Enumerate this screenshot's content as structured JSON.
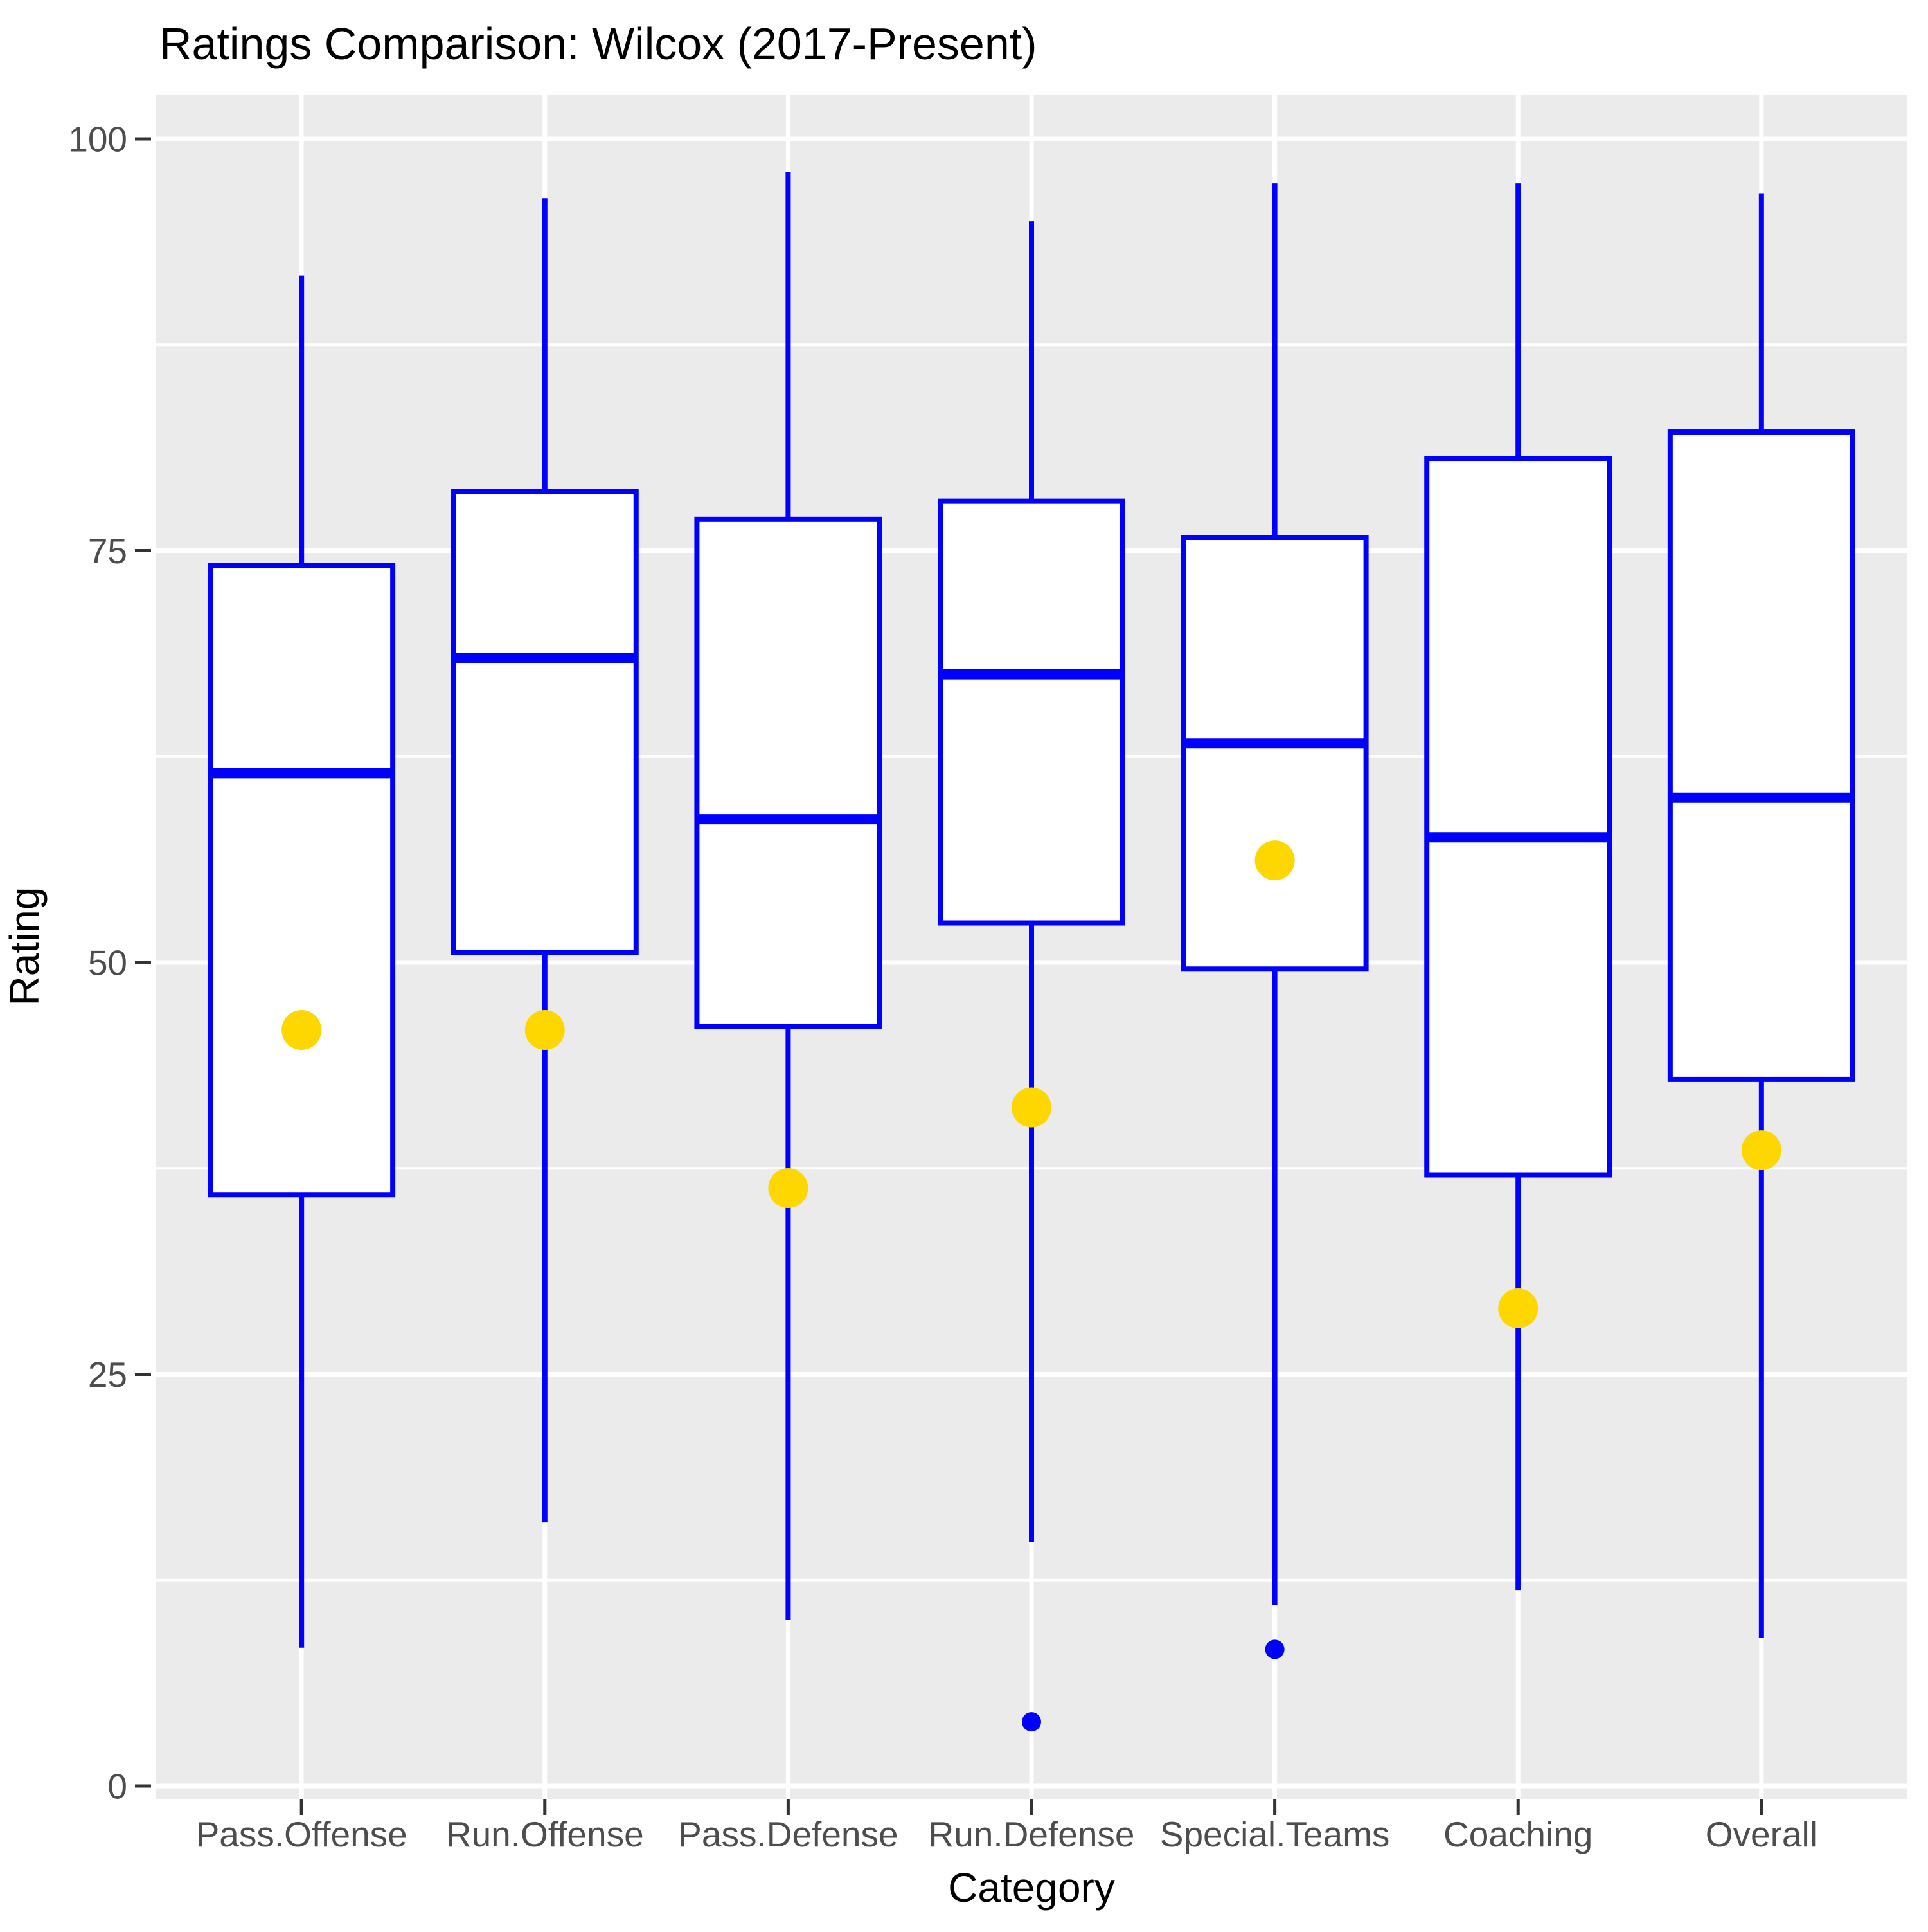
{
  "chart_data": {
    "type": "boxplot",
    "title": "Ratings Comparison: Wilcox (2017-Present)",
    "xlabel": "Category",
    "ylabel": "Rating",
    "ylim": [
      0,
      100
    ],
    "yticks": [
      0,
      25,
      50,
      75,
      100
    ],
    "y_minor_gridlines": [
      12.5,
      37.5,
      62.5,
      87.5
    ],
    "grid": "white major and minor horizontal gridlines plus vertical major gridlines at each category, on grey panel",
    "legend_position": "none",
    "categories": [
      "Pass.Offense",
      "Run.Offense",
      "Pass.Defense",
      "Run.Defense",
      "Special.Teams",
      "Coaching",
      "Overall"
    ],
    "series": [
      {
        "name": "Pass.Offense",
        "whisker_low": 8.4,
        "q1": 35.9,
        "median": 61.5,
        "q3": 74.1,
        "whisker_high": 91.7,
        "outliers": [],
        "highlight_dot": 45.9
      },
      {
        "name": "Run.Offense",
        "whisker_low": 16.0,
        "q1": 50.6,
        "median": 68.5,
        "q3": 78.6,
        "whisker_high": 96.4,
        "outliers": [],
        "highlight_dot": 45.9
      },
      {
        "name": "Pass.Defense",
        "whisker_low": 10.1,
        "q1": 46.1,
        "median": 58.7,
        "q3": 76.9,
        "whisker_high": 98.0,
        "outliers": [],
        "highlight_dot": 36.3
      },
      {
        "name": "Run.Defense",
        "whisker_low": 14.8,
        "q1": 52.4,
        "median": 67.5,
        "q3": 78.0,
        "whisker_high": 95.0,
        "outliers": [
          3.9
        ],
        "highlight_dot": 41.2
      },
      {
        "name": "Special.Teams",
        "whisker_low": 11.0,
        "q1": 49.6,
        "median": 63.3,
        "q3": 75.8,
        "whisker_high": 97.3,
        "outliers": [
          8.3
        ],
        "highlight_dot": 56.2
      },
      {
        "name": "Coaching",
        "whisker_low": 11.9,
        "q1": 37.1,
        "median": 57.6,
        "q3": 80.6,
        "whisker_high": 97.3,
        "outliers": [],
        "highlight_dot": 29.0
      },
      {
        "name": "Overall",
        "whisker_low": 9.0,
        "q1": 42.9,
        "median": 60.0,
        "q3": 82.2,
        "whisker_high": 96.7,
        "outliers": [],
        "highlight_dot": 38.6
      }
    ],
    "colors": {
      "box_border": "#0000FF",
      "box_fill": "#FFFFFF",
      "median": "#0000FF",
      "whisker": "#0000FF",
      "outlier_dot": "#0000FF",
      "highlight_dot": "#FFD700",
      "panel_background": "#EBEBEB",
      "gridline": "#FFFFFF",
      "tick_mark": "#333333",
      "tick_label_text": "#4D4D4D",
      "title_text": "#000000"
    }
  }
}
